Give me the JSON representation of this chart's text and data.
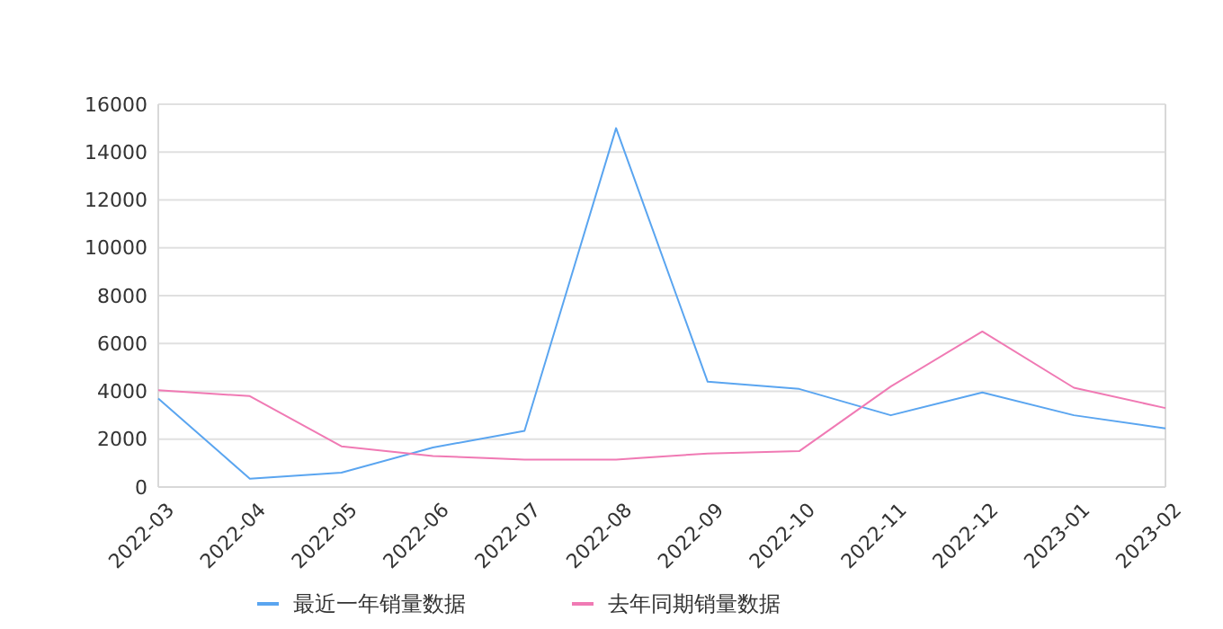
{
  "chart_data": {
    "type": "line",
    "categories": [
      "2022-03",
      "2022-04",
      "2022-05",
      "2022-06",
      "2022-07",
      "2022-08",
      "2022-09",
      "2022-10",
      "2022-11",
      "2022-12",
      "2023-01",
      "2023-02"
    ],
    "series": [
      {
        "name": "最近一年销量数据",
        "color": "#5aa5f0",
        "values": [
          3700,
          350,
          600,
          1650,
          2350,
          15000,
          4400,
          4100,
          3000,
          3950,
          3000,
          2450
        ]
      },
      {
        "name": "去年同期销量数据",
        "color": "#f07ab4",
        "values": [
          4050,
          3800,
          1700,
          1300,
          1150,
          1150,
          1400,
          1500,
          4200,
          6500,
          4150,
          3300
        ]
      }
    ],
    "ylim": [
      0,
      16000
    ],
    "yticks": [
      0,
      2000,
      4000,
      6000,
      8000,
      10000,
      12000,
      14000,
      16000
    ],
    "grid": "y",
    "legend": "bottom",
    "marker": "none",
    "line_style": "solid"
  }
}
